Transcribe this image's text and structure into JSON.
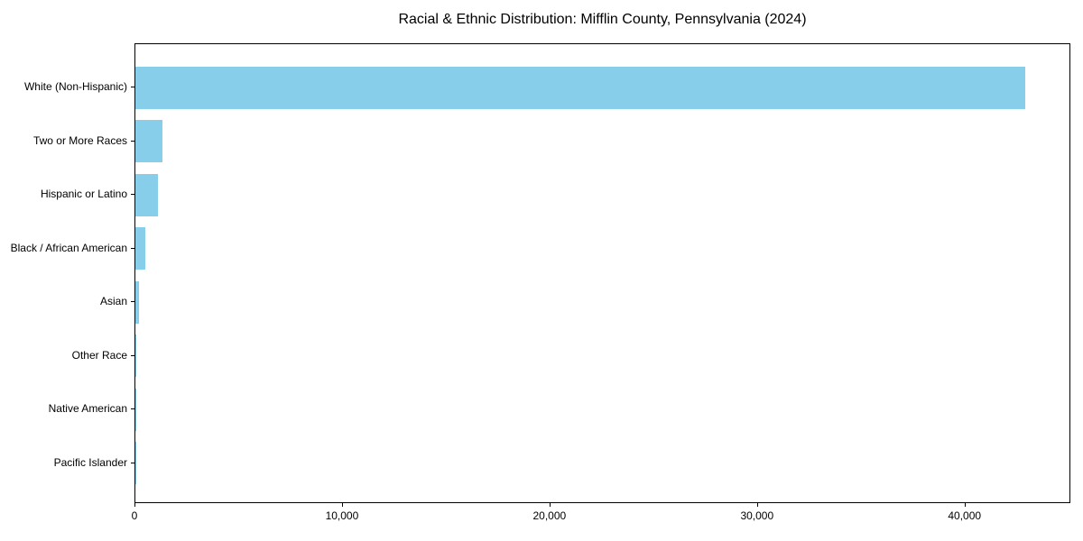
{
  "chart_data": {
    "type": "bar",
    "orientation": "horizontal",
    "title": "Racial & Ethnic Distribution: Mifflin County, Pennsylvania (2024)",
    "categories": [
      "White (Non-Hispanic)",
      "Two or More Races",
      "Hispanic or Latino",
      "Black / African American",
      "Asian",
      "Other Race",
      "Native American",
      "Pacific Islander"
    ],
    "values": [
      42900,
      1300,
      1100,
      460,
      180,
      60,
      30,
      10
    ],
    "xlabel": "",
    "ylabel": "",
    "xlim": [
      0,
      45100
    ],
    "x_ticks": [
      0,
      10000,
      20000,
      30000,
      40000
    ],
    "x_tick_labels": [
      "0",
      "10,000",
      "20,000",
      "30,000",
      "40,000"
    ],
    "bar_color": "#87CEEB",
    "axis_color": "#000000",
    "text_color": "#000000",
    "grid": false,
    "legend": "none"
  }
}
